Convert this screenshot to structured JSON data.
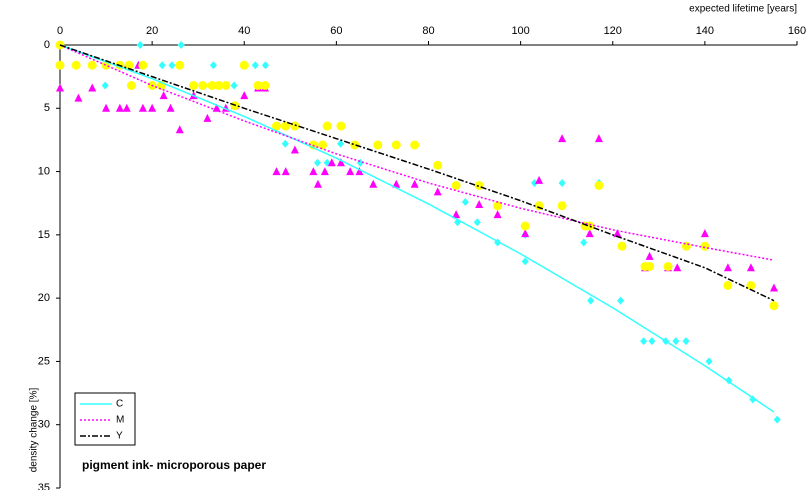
{
  "chart_data": {
    "type": "scatter",
    "x_title": "expected lifetime [years]",
    "y_title": "density change [%]",
    "annotation": "pigment ink- microporous paper",
    "xlim": [
      0,
      160
    ],
    "xticks": [
      0,
      20,
      40,
      60,
      80,
      100,
      120,
      140,
      160
    ],
    "ylim": [
      0,
      35
    ],
    "yticks": [
      0,
      5,
      10,
      15,
      20,
      25,
      30,
      35
    ],
    "y_reversed": true,
    "x_axis_position": "top",
    "grid": false,
    "legend": "bottom-left",
    "series": [
      {
        "name": "C",
        "color": "#33ffff",
        "marker": "diamond",
        "x": [
          0,
          17.4,
          26.3,
          9.8,
          22.2,
          24.3,
          33.3,
          42.4,
          44.6,
          37.8,
          48.9,
          55.9,
          58,
          60.9,
          65.2,
          88,
          86.3,
          90.6,
          95,
          101,
          101,
          103,
          109,
          117,
          113.7,
          115.2,
          121.7,
          126.7,
          128.5,
          131.5,
          133.7,
          135.9,
          140.9,
          145.2,
          150.4,
          155.7
        ],
        "values": [
          0,
          0,
          0,
          3.2,
          1.6,
          1.6,
          1.6,
          1.6,
          1.6,
          3.2,
          7.8,
          9.3,
          9.3,
          7.8,
          9.3,
          12.4,
          14,
          14,
          15.6,
          17.1,
          15,
          10.9,
          10.9,
          10.9,
          15.6,
          20.2,
          20.2,
          23.4,
          23.4,
          23.4,
          23.4,
          23.4,
          25,
          26.5,
          28,
          29.6
        ],
        "trend": {
          "color": "#33ffff",
          "dash": "none",
          "x": [
            0,
            20,
            40,
            60,
            80,
            100,
            120,
            140,
            155
          ],
          "values": [
            0,
            2.66,
            5.64,
            8.94,
            12.56,
            16.5,
            20.76,
            25.34,
            29
          ]
        }
      },
      {
        "name": "M",
        "color": "#ff00ff",
        "marker": "triangle",
        "x": [
          0,
          4,
          7,
          10,
          13,
          14.5,
          17,
          18,
          20,
          22.5,
          24,
          26,
          29,
          32,
          34,
          36,
          38,
          40,
          43,
          44.5,
          47,
          49,
          51,
          55,
          56,
          57.5,
          59,
          61,
          63,
          65,
          68,
          73,
          77,
          82,
          86,
          91,
          95,
          101,
          104,
          109,
          115,
          117,
          121,
          127,
          128,
          132,
          134,
          140,
          145,
          150,
          155
        ],
        "values": [
          3.4,
          4.2,
          3.4,
          5,
          5,
          5,
          1.6,
          5,
          5,
          4,
          5,
          6.7,
          4,
          5.8,
          5,
          5,
          4.8,
          4,
          3.4,
          3.4,
          10,
          10,
          8.3,
          10,
          11,
          10,
          9.3,
          9.3,
          10,
          10,
          11,
          11,
          11,
          11.6,
          13.4,
          12.6,
          13.4,
          14.9,
          10.7,
          7.4,
          14.9,
          7.4,
          14.9,
          17.6,
          16.7,
          17.6,
          17.6,
          14.9,
          17.6,
          17.6,
          19.2
        ],
        "trend": {
          "color": "#ff00ff",
          "dash": "2,2",
          "x": [
            0,
            20,
            40,
            60,
            80,
            100,
            120,
            140,
            155
          ],
          "values": [
            0,
            3.2,
            6,
            8.6,
            10.9,
            12.9,
            14.6,
            16,
            17
          ]
        }
      },
      {
        "name": "Y",
        "color": "#ffff00",
        "marker": "circle",
        "x": [
          0,
          0,
          3.5,
          7,
          10,
          13,
          15,
          18,
          15.5,
          20,
          22,
          26,
          29,
          31,
          33,
          34.5,
          36,
          38,
          40,
          43,
          44.5,
          47,
          49,
          51,
          55,
          57,
          58,
          61,
          64,
          69,
          73,
          77,
          82,
          86,
          91,
          95,
          104,
          101,
          109,
          114,
          115,
          117,
          122,
          127,
          128,
          132,
          136,
          140,
          145,
          150,
          155
        ],
        "values": [
          0,
          1.6,
          1.6,
          1.6,
          1.6,
          1.6,
          1.6,
          1.6,
          3.2,
          3.2,
          3.2,
          1.6,
          3.2,
          3.2,
          3.2,
          3.2,
          3.2,
          4.8,
          1.6,
          3.2,
          3.2,
          6.4,
          6.4,
          6.4,
          7.9,
          7.9,
          6.4,
          6.4,
          7.9,
          7.9,
          7.9,
          7.9,
          9.5,
          11.1,
          11.1,
          12.7,
          12.7,
          14.3,
          12.7,
          14.3,
          14.3,
          11.1,
          15.9,
          17.5,
          17.5,
          17.5,
          15.9,
          15.9,
          19,
          19,
          20.6
        ],
        "trend": {
          "color": "#000000",
          "dash": "6,2,2,2",
          "x": [
            0,
            20,
            40,
            60,
            80,
            100,
            120,
            140,
            155
          ],
          "values": [
            0,
            2.5,
            5,
            7.4,
            9.8,
            12.3,
            15,
            17.6,
            20.2
          ]
        }
      }
    ]
  }
}
